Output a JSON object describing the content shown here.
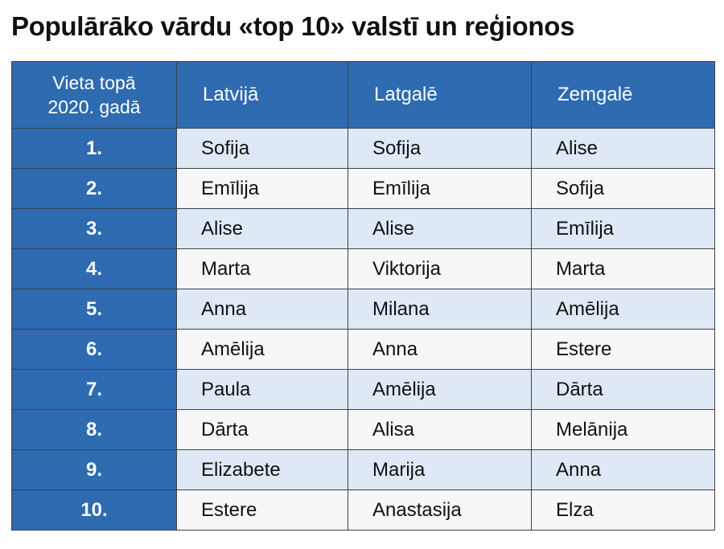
{
  "title": "Populārāko vārdu «top 10» valstī un reģionos",
  "columns": {
    "rank": [
      "Vieta topā",
      "2020. gadā"
    ],
    "latvija": "Latvijā",
    "latgale": "Latgalē",
    "zemgale": "Zemgalē"
  },
  "rows": [
    {
      "rank": "1.",
      "latvija": "Sofija",
      "latgale": "Sofija",
      "zemgale": "Alise"
    },
    {
      "rank": "2.",
      "latvija": "Emīlija",
      "latgale": "Emīlija",
      "zemgale": "Sofija"
    },
    {
      "rank": "3.",
      "latvija": "Alise",
      "latgale": "Alise",
      "zemgale": "Emīlija"
    },
    {
      "rank": "4.",
      "latvija": "Marta",
      "latgale": "Viktorija",
      "zemgale": "Marta"
    },
    {
      "rank": "5.",
      "latvija": "Anna",
      "latgale": "Milana",
      "zemgale": "Amēlija"
    },
    {
      "rank": "6.",
      "latvija": "Amēlija",
      "latgale": "Anna",
      "zemgale": "Estere"
    },
    {
      "rank": "7.",
      "latvija": "Paula",
      "latgale": "Amēlija",
      "zemgale": "Dārta"
    },
    {
      "rank": "8.",
      "latvija": "Dārta",
      "latgale": "Alisa",
      "zemgale": "Melānija"
    },
    {
      "rank": "9.",
      "latvija": "Elizabete",
      "latgale": "Marija",
      "zemgale": "Anna"
    },
    {
      "rank": "10.",
      "latvija": "Estere",
      "latgale": "Anastasija",
      "zemgale": "Elza"
    }
  ],
  "colors": {
    "header_blue": "#2e6bb1",
    "row_light_blue": "#dfe9f5",
    "row_light_gray": "#f7f7f7"
  }
}
